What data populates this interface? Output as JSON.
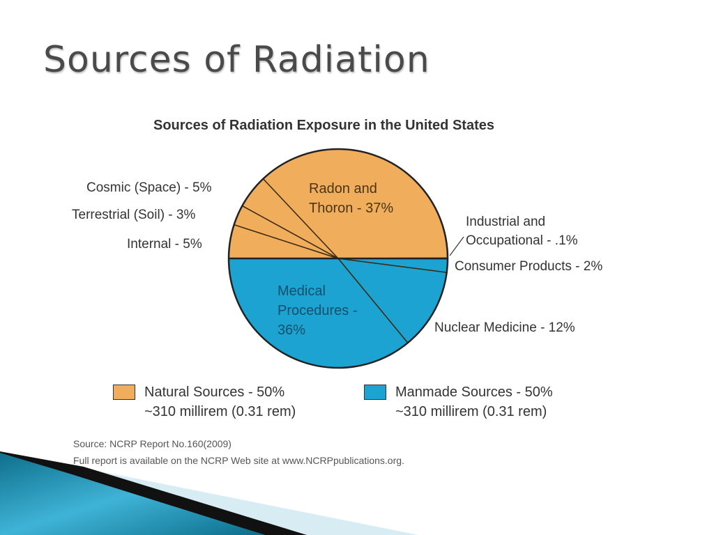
{
  "slide_title": "Sources of Radiation",
  "chart_data": {
    "type": "pie",
    "title": "Sources of Radiation Exposure in the United States",
    "slices": [
      {
        "label": "Internal - 5%",
        "value": 5,
        "group": "natural"
      },
      {
        "label": "Terrestrial (Soil) - 3%",
        "value": 3,
        "group": "natural"
      },
      {
        "label": "Cosmic (Space) - 5%",
        "value": 5,
        "group": "natural"
      },
      {
        "label": "Radon and Thoron - 37%",
        "value": 37,
        "group": "natural"
      },
      {
        "label": "Industrial and Occupational - .1%",
        "value": 0.1,
        "group": "manmade"
      },
      {
        "label": "Consumer Products - 2%",
        "value": 2,
        "group": "manmade"
      },
      {
        "label": "Nuclear Medicine - 12%",
        "value": 12,
        "group": "manmade"
      },
      {
        "label": "Medical Procedures - 36%",
        "value": 36,
        "group": "manmade"
      }
    ],
    "legend": [
      {
        "name": "Natural Sources - 50%",
        "sub": "~310 millirem (0.31 rem)",
        "color": "#F0AD5C"
      },
      {
        "name": "Manmade Sources - 50%",
        "sub": "~310 millirem (0.31 rem)",
        "color": "#1DA3D1"
      }
    ],
    "legend_placement": "bottom"
  },
  "labels": {
    "cosmic": "Cosmic (Space) - 5%",
    "terrestrial": "Terrestrial (Soil) - 3%",
    "internal": "Internal - 5%",
    "radon1": "Radon and",
    "radon2": "Thoron - 37%",
    "industrial1": "Industrial and",
    "industrial2": "Occupational - .1%",
    "consumer": "Consumer Products - 2%",
    "medical1": "Medical",
    "medical2": "Procedures -",
    "medical3": "36%",
    "nuclear": "Nuclear Medicine - 12%"
  },
  "source": {
    "line1": "Source: NCRP Report No.160(2009)",
    "line2": "Full report is available on the NCRP Web site at www.NCRPpublications.org."
  }
}
